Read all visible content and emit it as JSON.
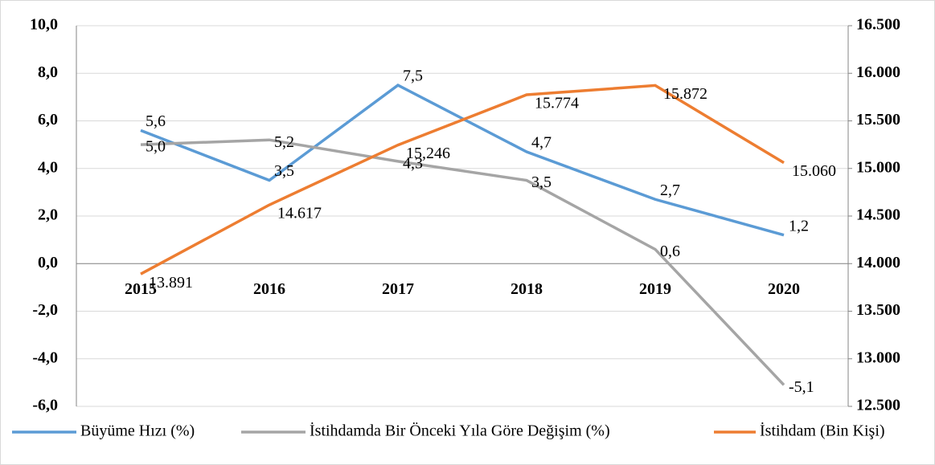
{
  "chart_data": {
    "type": "line",
    "categories": [
      "2015",
      "2016",
      "2017",
      "2018",
      "2019",
      "2020"
    ],
    "series": [
      {
        "name": "Büyüme Hızı (%)",
        "color": "#5b9bd5",
        "values": [
          5.6,
          3.5,
          7.5,
          4.7,
          2.7,
          1.2
        ],
        "value_labels": [
          "5,6",
          "3,5",
          "7,5",
          "4,7",
          "2,7",
          "1,2"
        ]
      },
      {
        "name": "İstihdamda Bir Önceki Yıla Göre Değişim (%)",
        "color": "#a5a5a5",
        "values": [
          5.0,
          5.2,
          4.3,
          3.5,
          0.6,
          -5.1
        ],
        "value_labels": [
          "5,0",
          "5,2",
          "4,3",
          "3,5",
          "0,6",
          "-5,1"
        ]
      },
      {
        "name": "İstihdam (Bin Kişi)",
        "color": "#ed7d31",
        "axis": "y2",
        "values": [
          13891,
          14617,
          15246,
          15774,
          15872,
          15060
        ],
        "value_labels": [
          "13.891",
          "14.617",
          "15,246",
          "15.774",
          "15.872",
          "15.060"
        ]
      }
    ],
    "ylim": [
      -6,
      10
    ],
    "yticks": [
      {
        "value": -6,
        "label": "-6,0"
      },
      {
        "value": -4,
        "label": "-4,0"
      },
      {
        "value": -2,
        "label": "-2,0"
      },
      {
        "value": 0,
        "label": "0,0"
      },
      {
        "value": 2,
        "label": "2,0"
      },
      {
        "value": 4,
        "label": "4,0"
      },
      {
        "value": 6,
        "label": "6,0"
      },
      {
        "value": 8,
        "label": "8,0"
      },
      {
        "value": 10,
        "label": "10,0"
      }
    ],
    "y2lim": [
      12500,
      16500
    ],
    "y2ticks": [
      {
        "value": 12500,
        "label": "12.500"
      },
      {
        "value": 13000,
        "label": "13.000"
      },
      {
        "value": 13500,
        "label": "13.500"
      },
      {
        "value": 14000,
        "label": "14.000"
      },
      {
        "value": 14500,
        "label": "14.500"
      },
      {
        "value": 15000,
        "label": "15.000"
      },
      {
        "value": 15500,
        "label": "15.500"
      },
      {
        "value": 16000,
        "label": "16.000"
      },
      {
        "value": 16500,
        "label": "16.500"
      }
    ],
    "grid": true,
    "legend": "bottom"
  }
}
